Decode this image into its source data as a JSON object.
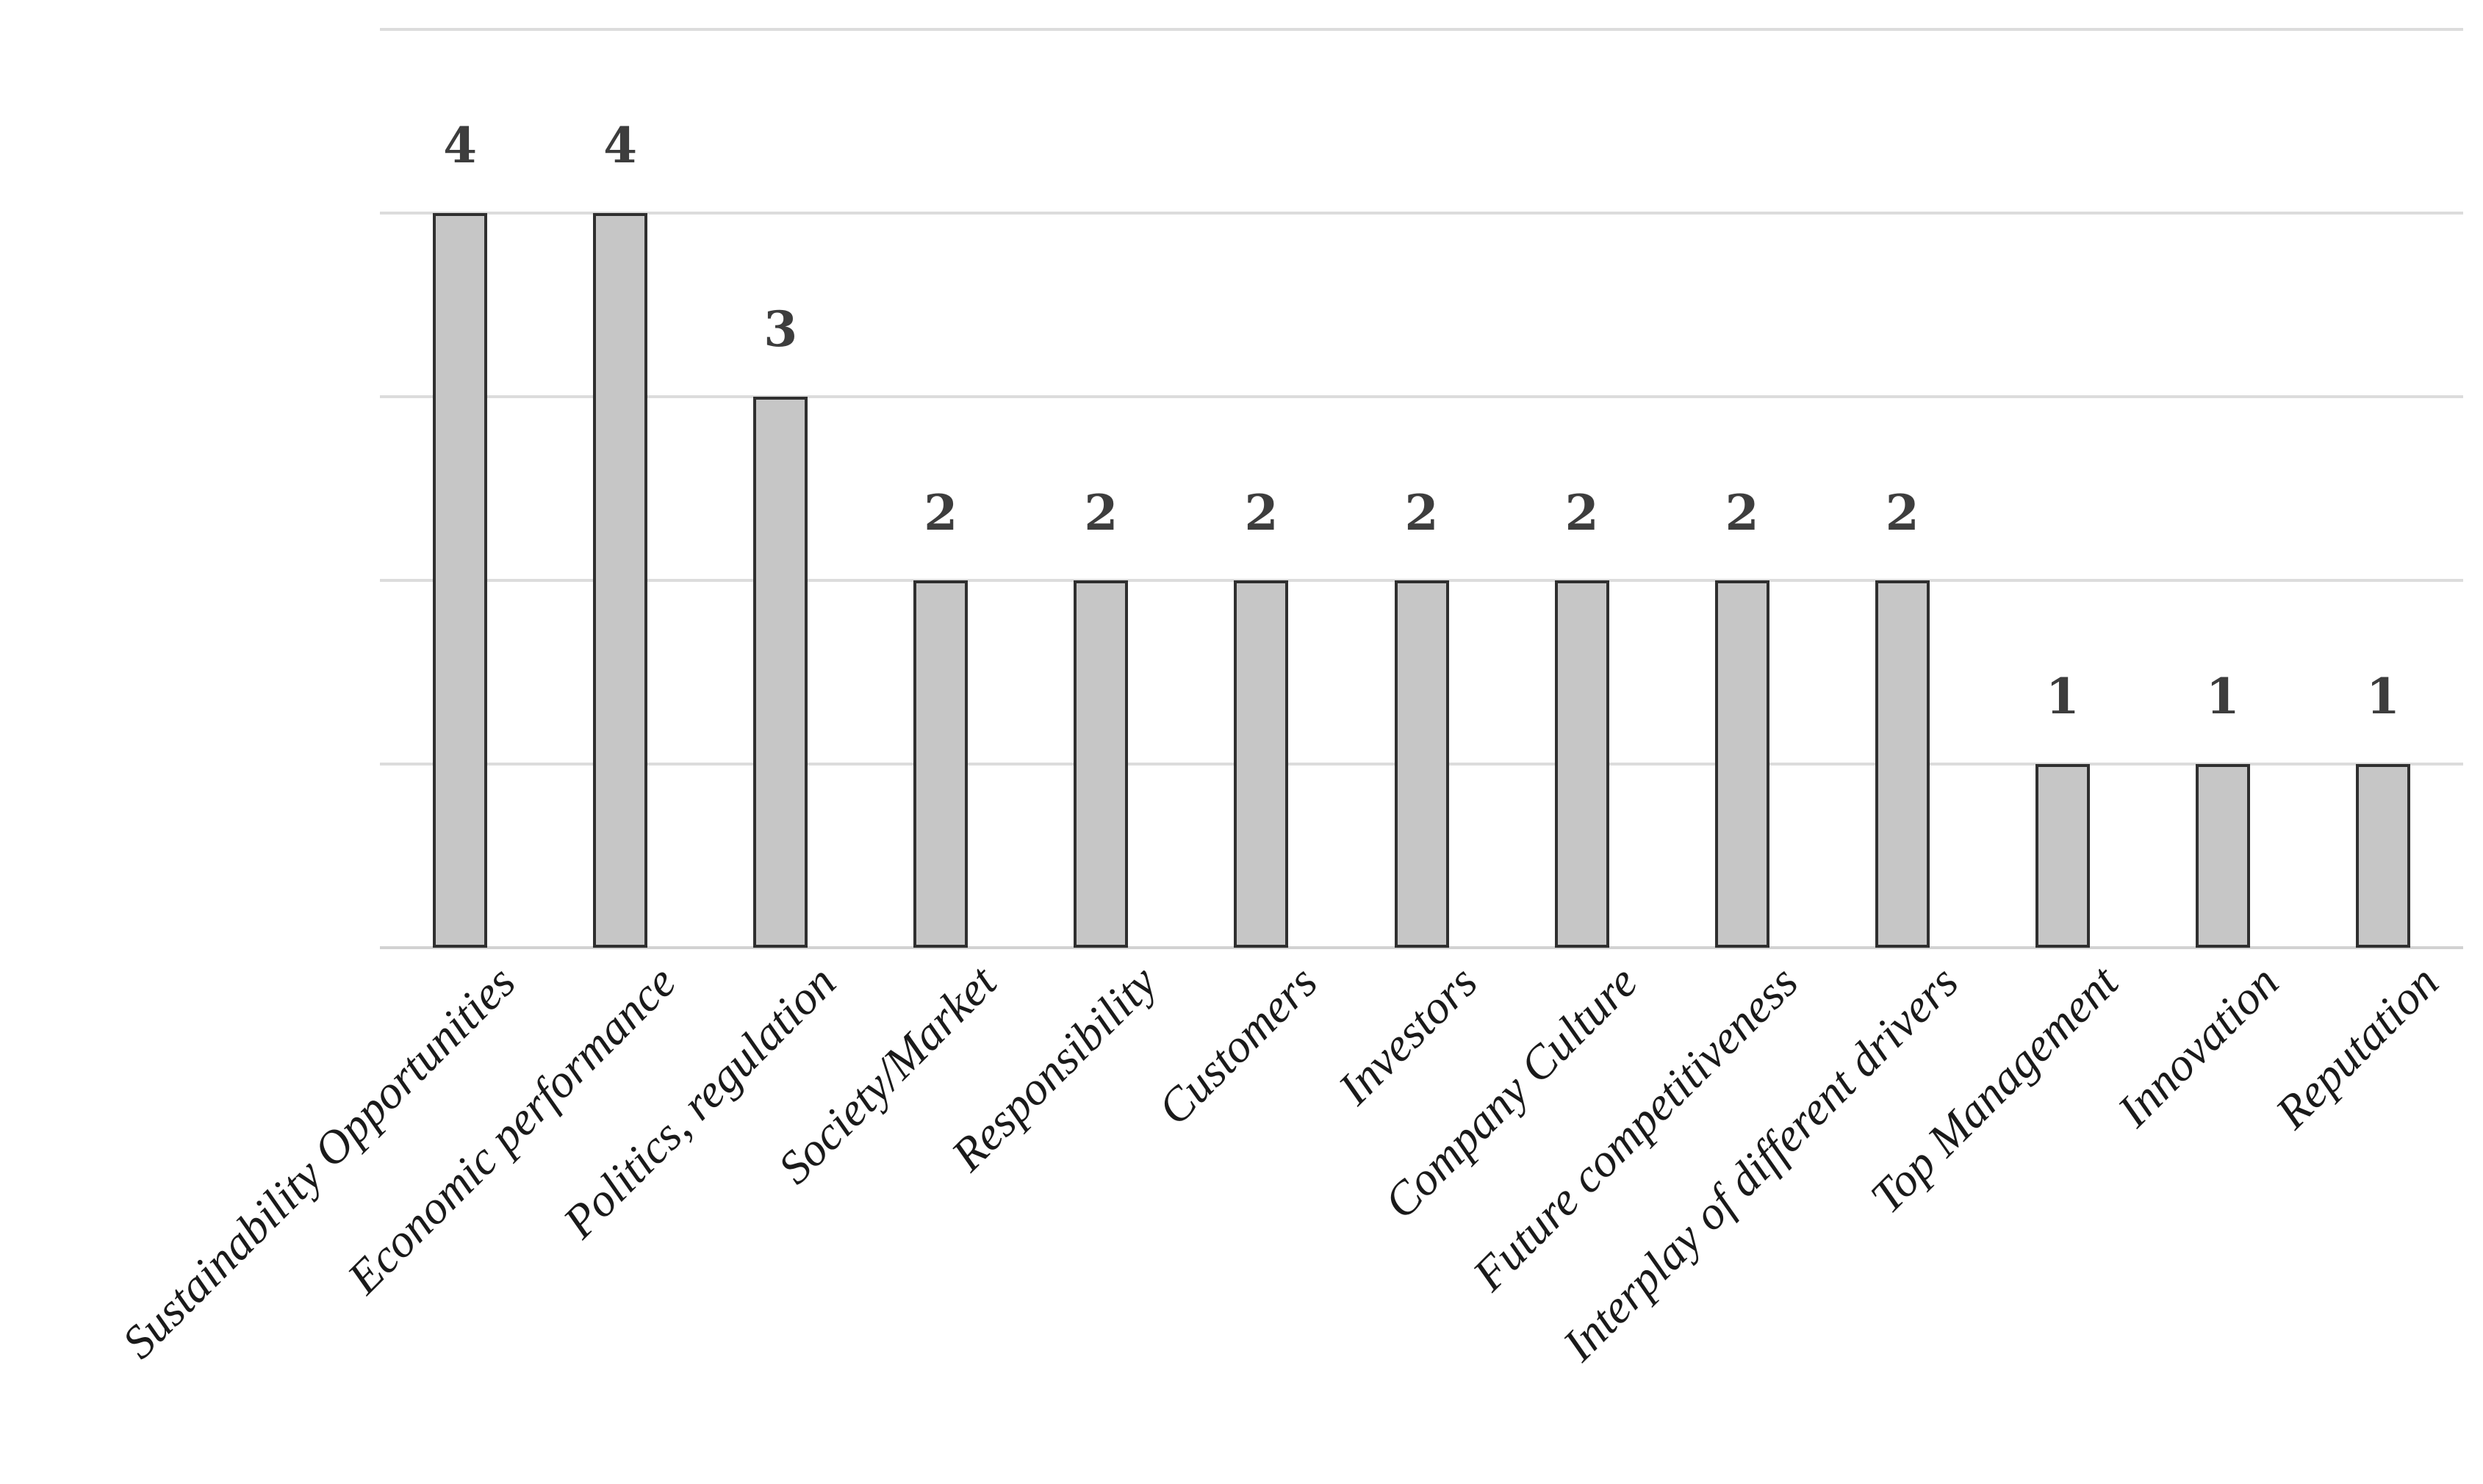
{
  "figure": {
    "background_color": "#ffffff",
    "title": ""
  },
  "chart_data": {
    "type": "bar",
    "title": "",
    "xlabel": "",
    "ylabel": "",
    "categories": [
      "Sustainability Opportunities",
      "Economic performance",
      "Politics, regulation",
      "Society/Market",
      "Responsibility",
      "Customers",
      "Investors",
      "Company Culture",
      "Future competitiveness",
      "Interplay of different drivers",
      "Top Management",
      "Innovation",
      "Reputation"
    ],
    "values": [
      4,
      4,
      3,
      2,
      2,
      2,
      2,
      2,
      2,
      2,
      1,
      1,
      1
    ],
    "data_labels": [
      "4",
      "4",
      "3",
      "2",
      "2",
      "2",
      "2",
      "2",
      "2",
      "2",
      "1",
      "1",
      "1"
    ],
    "ylim": [
      0,
      5
    ],
    "gridline_step": 1,
    "grid": "horizontal",
    "y_axis_tick_labels_visible": false,
    "legend_position": "none",
    "category_label_rotation_deg": -45,
    "colors": {
      "bar_fill": "#c6c6c6",
      "bar_border": "#2f2f2f",
      "gridline": "#dcdcdc",
      "baseline": "#d2d2d2",
      "value_label": "#3d3d3d",
      "category_label": "#1a1a1a"
    }
  }
}
